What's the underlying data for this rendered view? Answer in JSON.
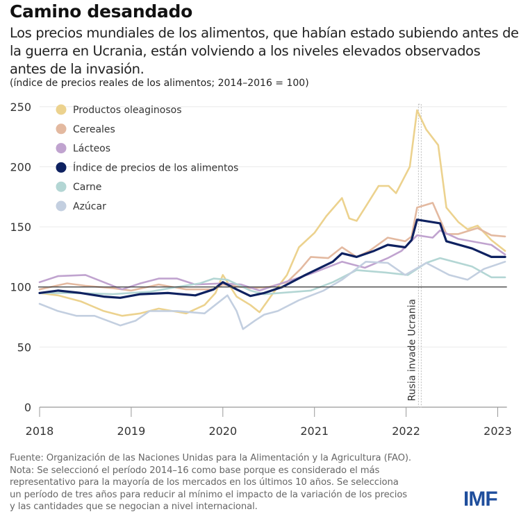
{
  "header": {
    "title": "Camino desandado",
    "subtitle": "Los precios mundiales de los alimentos, que habían estado subiendo antes de la guerra en Ucrania, están volviendo a los niveles elevados observados antes de la invasión.",
    "note": "(índice de precios reales de los alimentos; 2014–2016 = 100)"
  },
  "chart_data": {
    "type": "line",
    "title": "",
    "xlabel": "",
    "ylabel": "",
    "xlim": [
      2018,
      2023.1
    ],
    "ylim": [
      0,
      250
    ],
    "x_ticks": [
      "2018",
      "2019",
      "2020",
      "2021",
      "2022",
      "2023"
    ],
    "y_ticks": [
      "0",
      "50",
      "100",
      "150",
      "200",
      "250"
    ],
    "grid": "horizontal",
    "reference_line": 100,
    "legend_position": "top-left",
    "annotation": {
      "label": "Rusia invade Ucrania",
      "x": 2022.15
    },
    "series": [
      {
        "name": "Productos oleaginosos",
        "color": "#ecd28e",
        "points": [
          [
            2018,
            95
          ],
          [
            2018.2,
            93
          ],
          [
            2018.45,
            88
          ],
          [
            2018.7,
            80
          ],
          [
            2018.9,
            76
          ],
          [
            2019.1,
            78
          ],
          [
            2019.3,
            82
          ],
          [
            2019.6,
            78
          ],
          [
            2019.8,
            85
          ],
          [
            2019.92,
            95
          ],
          [
            2020.0,
            110
          ],
          [
            2020.15,
            92
          ],
          [
            2020.3,
            85
          ],
          [
            2020.4,
            79
          ],
          [
            2020.55,
            95
          ],
          [
            2020.7,
            110
          ],
          [
            2020.83,
            133
          ],
          [
            2021.0,
            145
          ],
          [
            2021.13,
            159
          ],
          [
            2021.3,
            174
          ],
          [
            2021.38,
            157
          ],
          [
            2021.46,
            155
          ],
          [
            2021.56,
            167
          ],
          [
            2021.7,
            184
          ],
          [
            2021.81,
            184
          ],
          [
            2021.89,
            178
          ],
          [
            2022.04,
            200
          ],
          [
            2022.12,
            247
          ],
          [
            2022.22,
            231
          ],
          [
            2022.35,
            218
          ],
          [
            2022.44,
            166
          ],
          [
            2022.57,
            154
          ],
          [
            2022.67,
            148
          ],
          [
            2022.78,
            151
          ],
          [
            2022.93,
            139
          ],
          [
            2023.08,
            130
          ]
        ]
      },
      {
        "name": "Cereales",
        "color": "#e3b9a0",
        "points": [
          [
            2018,
            98
          ],
          [
            2018.3,
            103
          ],
          [
            2018.5,
            101
          ],
          [
            2018.8,
            99
          ],
          [
            2019.0,
            97
          ],
          [
            2019.3,
            102
          ],
          [
            2019.6,
            98
          ],
          [
            2019.9,
            98
          ],
          [
            2020.0,
            102
          ],
          [
            2020.3,
            99
          ],
          [
            2020.5,
            100
          ],
          [
            2020.7,
            104
          ],
          [
            2020.85,
            115
          ],
          [
            2020.96,
            125
          ],
          [
            2021.15,
            124
          ],
          [
            2021.3,
            133
          ],
          [
            2021.46,
            125
          ],
          [
            2021.6,
            130
          ],
          [
            2021.8,
            141
          ],
          [
            2021.99,
            138
          ],
          [
            2022.06,
            142
          ],
          [
            2022.12,
            166
          ],
          [
            2022.29,
            170
          ],
          [
            2022.44,
            144
          ],
          [
            2022.57,
            144
          ],
          [
            2022.78,
            149
          ],
          [
            2022.93,
            143
          ],
          [
            2023.08,
            142
          ]
        ]
      },
      {
        "name": "Lácteos",
        "color": "#c0a3cf",
        "points": [
          [
            2018,
            104
          ],
          [
            2018.2,
            109
          ],
          [
            2018.5,
            110
          ],
          [
            2018.7,
            104
          ],
          [
            2018.9,
            98
          ],
          [
            2019.1,
            103
          ],
          [
            2019.3,
            107
          ],
          [
            2019.5,
            107
          ],
          [
            2019.7,
            102
          ],
          [
            2020.0,
            103
          ],
          [
            2020.2,
            102
          ],
          [
            2020.4,
            97
          ],
          [
            2020.6,
            102
          ],
          [
            2020.96,
            111
          ],
          [
            2021.3,
            121
          ],
          [
            2021.55,
            116
          ],
          [
            2021.8,
            124
          ],
          [
            2021.95,
            130
          ],
          [
            2022.12,
            143
          ],
          [
            2022.29,
            141
          ],
          [
            2022.37,
            147
          ],
          [
            2022.57,
            140
          ],
          [
            2022.93,
            135
          ],
          [
            2023.08,
            127
          ]
        ]
      },
      {
        "name": "Índice de precios de los alimentos",
        "color": "#0e2160",
        "points": [
          [
            2018,
            95
          ],
          [
            2018.2,
            97
          ],
          [
            2018.45,
            95
          ],
          [
            2018.7,
            92
          ],
          [
            2018.88,
            91
          ],
          [
            2019.1,
            94
          ],
          [
            2019.4,
            95
          ],
          [
            2019.7,
            93
          ],
          [
            2019.9,
            98
          ],
          [
            2020.0,
            104
          ],
          [
            2020.15,
            98
          ],
          [
            2020.3,
            92.5
          ],
          [
            2020.45,
            95
          ],
          [
            2020.65,
            100
          ],
          [
            2020.9,
            110
          ],
          [
            2021.2,
            121
          ],
          [
            2021.3,
            128
          ],
          [
            2021.46,
            125
          ],
          [
            2021.65,
            130
          ],
          [
            2021.8,
            135
          ],
          [
            2021.99,
            133
          ],
          [
            2022.06,
            139
          ],
          [
            2022.12,
            156
          ],
          [
            2022.37,
            153
          ],
          [
            2022.44,
            138
          ],
          [
            2022.72,
            132
          ],
          [
            2022.93,
            125
          ],
          [
            2023.08,
            125
          ]
        ]
      },
      {
        "name": "Carne",
        "color": "#b3d6d4",
        "points": [
          [
            2018,
            95
          ],
          [
            2018.4,
            95
          ],
          [
            2018.8,
            94
          ],
          [
            2019.2,
            96
          ],
          [
            2019.5,
            100
          ],
          [
            2019.75,
            103
          ],
          [
            2019.9,
            107
          ],
          [
            2020.05,
            106
          ],
          [
            2020.3,
            97
          ],
          [
            2020.45,
            94
          ],
          [
            2020.96,
            97
          ],
          [
            2021.2,
            104
          ],
          [
            2021.46,
            114
          ],
          [
            2021.78,
            112
          ],
          [
            2022.02,
            110
          ],
          [
            2022.22,
            120
          ],
          [
            2022.37,
            124
          ],
          [
            2022.72,
            117
          ],
          [
            2022.93,
            108
          ],
          [
            2023.08,
            108
          ]
        ]
      },
      {
        "name": "Azúcar",
        "color": "#c3cfe0",
        "points": [
          [
            2018,
            86
          ],
          [
            2018.2,
            80
          ],
          [
            2018.4,
            76
          ],
          [
            2018.6,
            76
          ],
          [
            2018.88,
            68
          ],
          [
            2019.05,
            72
          ],
          [
            2019.2,
            80
          ],
          [
            2019.5,
            80
          ],
          [
            2019.8,
            78
          ],
          [
            2020.05,
            93
          ],
          [
            2020.15,
            80
          ],
          [
            2020.22,
            65
          ],
          [
            2020.35,
            72
          ],
          [
            2020.45,
            77
          ],
          [
            2020.6,
            80
          ],
          [
            2020.83,
            89
          ],
          [
            2021.1,
            97
          ],
          [
            2021.3,
            106
          ],
          [
            2021.56,
            121
          ],
          [
            2021.8,
            120
          ],
          [
            2021.99,
            110
          ],
          [
            2022.22,
            120
          ],
          [
            2022.47,
            110
          ],
          [
            2022.67,
            106
          ],
          [
            2022.85,
            115
          ],
          [
            2023.08,
            121
          ]
        ]
      }
    ]
  },
  "footer": {
    "lines": [
      "Fuente: Organización de las Naciones Unidas para la Alimentación y la Agricultura (FAO).",
      "Nota: Se seleccionó el período 2014–16 como base porque es considerado el más",
      "representativo para la mayoría de los mercados en los últimos 10 años. Se selecciona",
      "un período de tres años para reducir al mínimo el impacto de la variación de los precios",
      "y las cantidades que se negocian a nivel internacional."
    ],
    "logo": "IMF"
  }
}
